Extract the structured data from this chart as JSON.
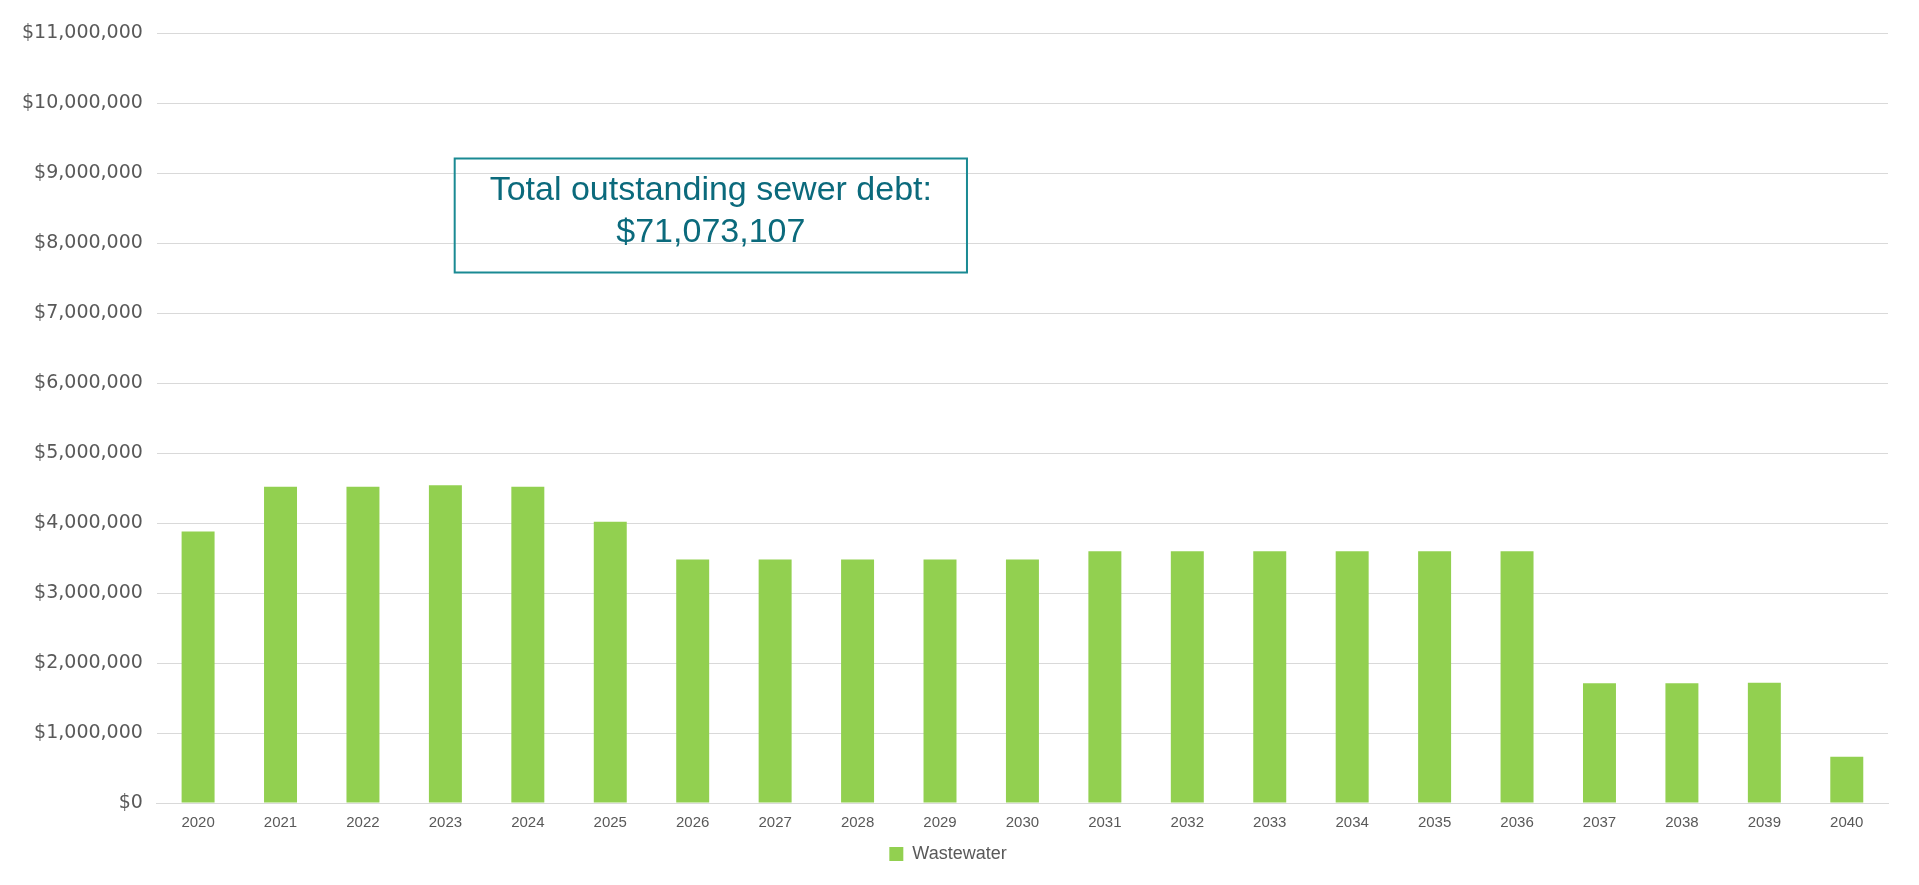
{
  "chart_data": {
    "type": "bar",
    "categories": [
      "2020",
      "2021",
      "2022",
      "2023",
      "2024",
      "2025",
      "2026",
      "2027",
      "2028",
      "2029",
      "2030",
      "2031",
      "2032",
      "2033",
      "2034",
      "2035",
      "2036",
      "2037",
      "2038",
      "2039",
      "2040"
    ],
    "series": [
      {
        "name": "Wastewater",
        "color": "#92d050",
        "values": [
          3880000,
          4520000,
          4520000,
          4540000,
          4520000,
          4020000,
          3480000,
          3480000,
          3480000,
          3480000,
          3480000,
          3600000,
          3600000,
          3600000,
          3600000,
          3600000,
          3600000,
          1710000,
          1710000,
          1720000,
          660000
        ]
      }
    ],
    "ylim": [
      0,
      11000000
    ],
    "yticks": [
      {
        "value": 0,
        "label": "$0"
      },
      {
        "value": 1000000,
        "label": "$1,000,000"
      },
      {
        "value": 2000000,
        "label": "$2,000,000"
      },
      {
        "value": 3000000,
        "label": "$3,000,000"
      },
      {
        "value": 4000000,
        "label": "$4,000,000"
      },
      {
        "value": 5000000,
        "label": "$5,000,000"
      },
      {
        "value": 6000000,
        "label": "$6,000,000"
      },
      {
        "value": 7000000,
        "label": "$7,000,000"
      },
      {
        "value": 8000000,
        "label": "$8,000,000"
      },
      {
        "value": 9000000,
        "label": "$9,000,000"
      },
      {
        "value": 10000000,
        "label": "$10,000,000"
      },
      {
        "value": 11000000,
        "label": "$11,000,000"
      }
    ],
    "grid": "y",
    "legend": "bottom",
    "annotations": [
      "Total outstanding sewer debt:\n$71,073,107"
    ]
  }
}
